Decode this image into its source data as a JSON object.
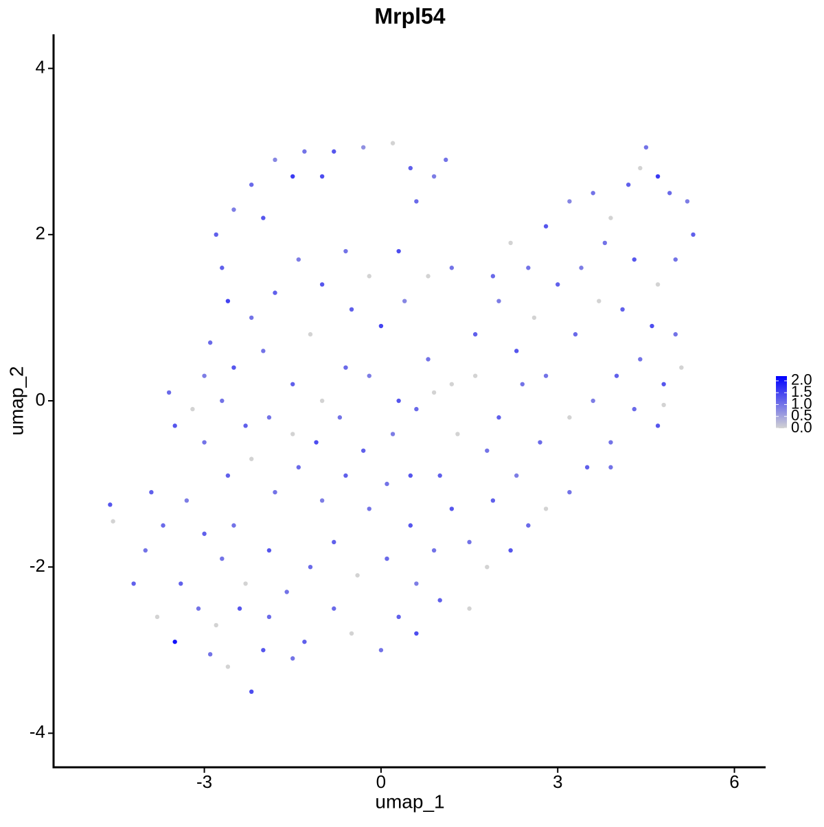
{
  "chart_data": {
    "type": "scatter",
    "title": "Mrpl54",
    "xlabel": "umap_1",
    "ylabel": "umap_2",
    "xlim": [
      -5.56,
      6.53
    ],
    "ylim": [
      -4.41,
      4.41
    ],
    "xticks": [
      -3,
      0,
      3,
      6
    ],
    "yticks": [
      -4,
      -2,
      0,
      2,
      4
    ],
    "color_scale": {
      "low": "#d3d3d3",
      "high": "#0000ff",
      "lim": [
        0,
        2.2
      ],
      "ticks": [
        {
          "value": 0,
          "label": "0.0"
        },
        {
          "value": 0.5,
          "label": "0.5"
        },
        {
          "value": 1,
          "label": "1.0"
        },
        {
          "value": 1.5,
          "label": "1.5"
        },
        {
          "value": 2,
          "label": "2.0"
        }
      ]
    },
    "series": [
      {
        "x": [
          -2.8,
          -2.5,
          -2.2,
          -1.8,
          -1.3,
          -0.8,
          -0.3,
          0.2,
          0.5,
          0.9,
          1.1,
          -1.5,
          -1.0,
          0.6,
          -2.0,
          -2.7,
          -2.6,
          -2.2,
          -1.8,
          -1.4,
          -1.0,
          -0.6,
          -0.2,
          0.3,
          0.8,
          1.2,
          -0.5,
          0,
          0.4,
          -1.2,
          -2.9,
          -3.0,
          -2.5,
          -2.0,
          -1.5,
          -1.0,
          -0.6,
          -0.2,
          0.3,
          0.8,
          1.2,
          1.6,
          2.0,
          2.2,
          1.9,
          2.5,
          2.8,
          3.2,
          3.6,
          3.9,
          4.2,
          4.5,
          4.7,
          4.4,
          4.9,
          5.2,
          5.3,
          5.0,
          4.7,
          4.3,
          3.8,
          3.4,
          3.0,
          2.6,
          2.3,
          2.8,
          3.3,
          3.7,
          4.1,
          4.6,
          5.0,
          5.1,
          4.8,
          4.4,
          4.0,
          3.6,
          3.2,
          4.3,
          4.7,
          3.9,
          3.5,
          3.2,
          2.8,
          2.5,
          2.2,
          1.8,
          1.5,
          1.9,
          2.3,
          2.7,
          1.8,
          1.3,
          1.0,
          1.2,
          0.9,
          0.6,
          0.3,
          0,
          -0.5,
          -0.8,
          -1.3,
          -1.5,
          -2.0,
          -2.2,
          -2.6,
          -2.9,
          -3.5,
          -3.8,
          -4.2,
          -4.0,
          -4.6,
          -4.55,
          -3.7,
          -3.3,
          -3.0,
          -2.7,
          -2.3,
          -1.9,
          -1.6,
          -1.2,
          -0.8,
          -0.4,
          0.1,
          0.5,
          -0.2,
          -0.6,
          -1.0,
          -1.4,
          -1.8,
          -2.2,
          -2.6,
          -3.0,
          -3.5,
          -3.6,
          -3.2,
          -2.7,
          -2.3,
          -1.9,
          -1.5,
          -1.1,
          -0.7,
          -0.3,
          0.2,
          0.6,
          0.9,
          0.5,
          0.1,
          -3.4,
          -3.1,
          -2.8,
          -2.4,
          -1.9,
          -2.5,
          -3.9,
          1.5,
          1.0,
          0.6,
          2.4,
          1.6,
          2.0,
          4.8,
          3.9
        ],
        "y": [
          2.0,
          2.3,
          2.6,
          2.9,
          3.0,
          3.0,
          3.05,
          3.1,
          2.8,
          2.7,
          2.9,
          2.7,
          2.7,
          2.4,
          2.2,
          1.6,
          1.2,
          1.0,
          1.3,
          1.7,
          1.4,
          1.8,
          1.5,
          1.8,
          1.5,
          1.6,
          1.1,
          0.9,
          1.2,
          0.8,
          0.7,
          0.3,
          0.4,
          0.6,
          0.2,
          0,
          0.4,
          0.3,
          0,
          0.5,
          0.2,
          0.8,
          1.2,
          1.9,
          1.5,
          1.6,
          2.1,
          2.4,
          2.5,
          2.2,
          2.6,
          3.05,
          2.7,
          2.8,
          2.5,
          2.4,
          2.0,
          1.7,
          1.4,
          1.7,
          1.9,
          1.6,
          1.4,
          1.0,
          0.6,
          0.3,
          0.8,
          1.2,
          1.1,
          0.9,
          0.8,
          0.4,
          0.2,
          0.5,
          0.3,
          0,
          -0.2,
          -0.1,
          -0.3,
          -0.5,
          -0.8,
          -1.1,
          -1.3,
          -1.5,
          -1.8,
          -2.0,
          -1.7,
          -1.2,
          -0.9,
          -0.5,
          -0.6,
          -0.4,
          -0.9,
          -1.3,
          -1.8,
          -2.2,
          -2.6,
          -3.0,
          -2.8,
          -2.5,
          -2.9,
          -3.1,
          -3.0,
          -3.5,
          -3.2,
          -3.05,
          -2.9,
          -2.6,
          -2.2,
          -1.8,
          -1.25,
          -1.45,
          -1.5,
          -1.2,
          -1.6,
          -1.9,
          -2.2,
          -1.8,
          -2.3,
          -2.0,
          -1.7,
          -2.1,
          -1.9,
          -1.5,
          -1.3,
          -0.9,
          -1.2,
          -0.8,
          -1.1,
          -0.7,
          -0.9,
          -0.5,
          -0.3,
          0.1,
          -0.1,
          0,
          -0.3,
          -0.2,
          -0.4,
          -0.5,
          -0.2,
          -0.6,
          -0.4,
          -0.1,
          0.1,
          -0.9,
          -1.0,
          -2.2,
          -2.5,
          -2.7,
          -2.5,
          -2.6,
          -1.5,
          -1.1,
          -2.5,
          -2.4,
          -2.8,
          0.2,
          0.3,
          -0.2,
          -0.05,
          -0.8
        ],
        "values": [
          1.2,
          0.9,
          1.1,
          0.8,
          1.0,
          1.3,
          0.7,
          0,
          1.2,
          0.9,
          1.0,
          1.6,
          1.4,
          1.1,
          1.3,
          1.2,
          1.5,
          1.0,
          1.2,
          0.9,
          1.3,
          1.0,
          0,
          1.4,
          0,
          1.0,
          1.2,
          1.5,
          0.8,
          0,
          1.1,
          0.9,
          1.3,
          1.0,
          1.2,
          0,
          1.1,
          0.9,
          1.3,
          1.0,
          0,
          1.2,
          0.9,
          0,
          1.1,
          1.0,
          1.3,
          0.8,
          1.0,
          0,
          1.2,
          1.0,
          1.6,
          0,
          1.1,
          0.9,
          1.2,
          1.0,
          0,
          1.3,
          1.0,
          0.9,
          1.2,
          0,
          1.3,
          1.0,
          1.1,
          0,
          1.2,
          1.4,
          1.0,
          0,
          1.3,
          1.0,
          1.2,
          0.9,
          0,
          1.1,
          1.3,
          1.0,
          1.2,
          1.0,
          0,
          1.1,
          1.3,
          0,
          1.0,
          1.2,
          0.9,
          1.1,
          1.0,
          0,
          1.2,
          1.3,
          1.0,
          0.9,
          1.2,
          1.0,
          0,
          1.1,
          1.2,
          1.0,
          1.3,
          1.4,
          0,
          1.0,
          2.0,
          0,
          1.2,
          1.0,
          1.3,
          0,
          1.1,
          0.9,
          1.2,
          1.0,
          0,
          1.3,
          1.0,
          1.1,
          1.2,
          0,
          1.1,
          1.3,
          1.0,
          1.2,
          0.9,
          1.1,
          1.0,
          0,
          1.2,
          1.0,
          1.3,
          1.1,
          0,
          1.0,
          1.2,
          1.0,
          0,
          1.4,
          1.0,
          1.2,
          0.9,
          1.1,
          0,
          1.3,
          1.0,
          1.2,
          1.0,
          0,
          1.3,
          1.1,
          1.0,
          1.2,
          0,
          1.2,
          1.4,
          1.0,
          0,
          1.2,
          0,
          1.0
        ]
      }
    ]
  }
}
